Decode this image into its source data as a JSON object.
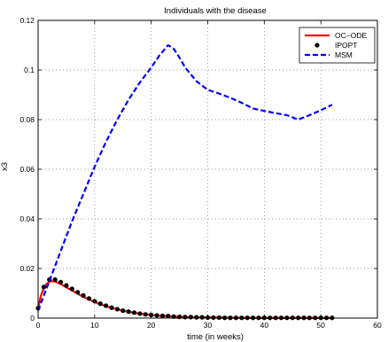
{
  "chart_data": {
    "type": "line",
    "title": "Individuals with the disease",
    "xlabel": "time (in weeks)",
    "ylabel": "x3",
    "xlim": [
      0,
      60
    ],
    "ylim": [
      0,
      0.12
    ],
    "xticks": [
      0,
      10,
      20,
      30,
      40,
      50,
      60
    ],
    "yticks": [
      0,
      0.02,
      0.04,
      0.06,
      0.08,
      0.1,
      0.12
    ],
    "xtick_labels": [
      "0",
      "10",
      "20",
      "30",
      "40",
      "50",
      "60"
    ],
    "ytick_labels": [
      "0",
      "0.02",
      "0.04",
      "0.06",
      "0.08",
      "0.1",
      "0.12"
    ],
    "grid": true,
    "legend_position": "top-right",
    "series": [
      {
        "name": "OC−ODE",
        "style": "solid",
        "color": "#ff0000",
        "x": [
          0,
          0.5,
          1,
          1.5,
          2,
          2.5,
          3,
          4,
          5,
          6,
          7,
          8,
          9,
          10,
          11,
          12,
          13,
          14,
          15,
          16,
          17,
          18,
          19,
          20,
          22,
          24,
          26,
          28,
          30,
          35,
          40,
          45,
          52
        ],
        "y": [
          0.004,
          0.009,
          0.012,
          0.0138,
          0.0147,
          0.0149,
          0.0147,
          0.0137,
          0.0124,
          0.0111,
          0.0098,
          0.0086,
          0.0075,
          0.0065,
          0.0056,
          0.0048,
          0.0041,
          0.0035,
          0.003,
          0.0025,
          0.0021,
          0.0018,
          0.0015,
          0.0012,
          0.0009,
          0.0006,
          0.0004,
          0.0003,
          0.0002,
          0.0001,
          5e-05,
          2e-05,
          1e-05
        ]
      },
      {
        "name": "IPOPT",
        "style": "markers",
        "color": "#000000",
        "x": [
          0,
          1,
          2,
          3,
          4,
          5,
          6,
          7,
          8,
          9,
          10,
          11,
          12,
          13,
          14,
          15,
          16,
          17,
          18,
          19,
          20,
          21,
          22,
          23,
          24,
          25,
          26,
          27,
          28,
          29,
          30,
          31,
          32,
          33,
          34,
          35,
          36,
          37,
          38,
          39,
          40,
          41,
          42,
          43,
          44,
          45,
          46,
          47,
          48,
          49,
          50,
          51,
          52
        ],
        "y": [
          0.004,
          0.0125,
          0.0155,
          0.0155,
          0.0145,
          0.0132,
          0.0118,
          0.0104,
          0.0091,
          0.0079,
          0.0068,
          0.0058,
          0.005,
          0.0042,
          0.0036,
          0.003,
          0.0026,
          0.0022,
          0.0018,
          0.0015,
          0.0013,
          0.0011,
          0.0009,
          0.0008,
          0.0006,
          0.0005,
          0.0004,
          0.0004,
          0.0003,
          0.0003,
          0.0002,
          0.0002,
          0.0002,
          0.0001,
          0.0001,
          0.0001,
          0.0001,
          0.0001,
          0.0001,
          0.0001,
          0.0001,
          0.0001,
          0.0001,
          0.0001,
          0.0001,
          0.0001,
          0.0001,
          0.0001,
          0.0001,
          0.0001,
          0.0001,
          0.0001,
          0.0001
        ]
      },
      {
        "name": "MSM",
        "style": "dashed",
        "color": "#0000ff",
        "x": [
          0,
          1,
          2,
          3,
          4,
          5,
          6,
          8,
          10,
          12,
          14,
          16,
          18,
          20,
          21.5,
          23,
          24,
          25,
          26,
          28,
          30,
          32,
          34,
          36,
          38,
          40,
          42,
          44,
          46,
          48,
          50,
          52
        ],
        "y": [
          0.003,
          0.009,
          0.015,
          0.021,
          0.027,
          0.033,
          0.039,
          0.05,
          0.061,
          0.071,
          0.08,
          0.088,
          0.095,
          0.101,
          0.106,
          0.11,
          0.1085,
          0.105,
          0.101,
          0.0955,
          0.092,
          0.0905,
          0.0888,
          0.0868,
          0.0845,
          0.0835,
          0.0826,
          0.0818,
          0.08,
          0.0818,
          0.0838,
          0.086
        ]
      }
    ]
  }
}
